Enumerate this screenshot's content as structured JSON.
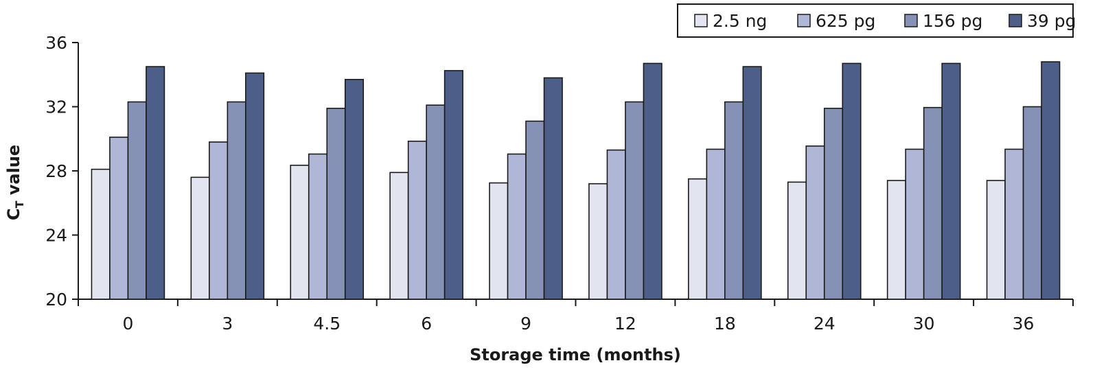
{
  "chart_data": {
    "type": "bar",
    "categories": [
      "0",
      "3",
      "4.5",
      "6",
      "9",
      "12",
      "18",
      "24",
      "30",
      "36"
    ],
    "series": [
      {
        "name": "2.5 ng",
        "color": "#e2e4f0",
        "values": [
          28.1,
          27.6,
          28.35,
          27.9,
          27.25,
          27.2,
          27.5,
          27.3,
          27.4,
          27.4
        ]
      },
      {
        "name": "625 pg",
        "color": "#b0b7d6",
        "values": [
          30.1,
          29.8,
          29.05,
          29.85,
          29.05,
          29.3,
          29.35,
          29.55,
          29.35,
          29.35
        ]
      },
      {
        "name": "156 pg",
        "color": "#8692b5",
        "values": [
          32.3,
          32.3,
          31.9,
          32.1,
          31.1,
          32.3,
          32.3,
          31.9,
          31.95,
          32.0
        ]
      },
      {
        "name": "39 pg",
        "color": "#4d5e88",
        "values": [
          34.5,
          34.1,
          33.7,
          34.25,
          33.8,
          34.7,
          34.5,
          34.7,
          34.7,
          34.8
        ]
      }
    ],
    "yticks": [
      20,
      24,
      28,
      32,
      36
    ],
    "ylim": [
      20,
      36
    ],
    "xlabel": "Storage time (months)",
    "ylabel_main": "C",
    "ylabel_sub": "T",
    "ylabel_rest": " value",
    "grid": false,
    "legend_position": "top-right"
  }
}
